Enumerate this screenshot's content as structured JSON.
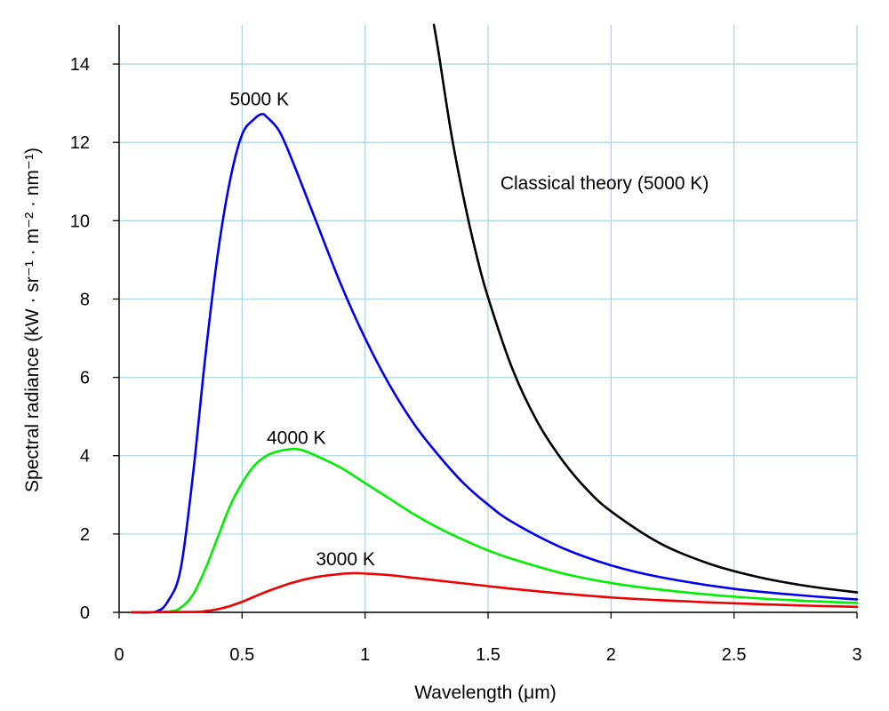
{
  "chart_data": {
    "type": "line",
    "title": "",
    "xlabel": "Wavelength (μm)",
    "ylabel": "Spectral radiance (kW · sr⁻¹ · m⁻² · nm⁻¹)",
    "xlim": [
      0,
      3
    ],
    "ylim": [
      0,
      15
    ],
    "x_ticks": [
      "0",
      "0.5",
      "1",
      "1.5",
      "2",
      "2.5",
      "3"
    ],
    "y_ticks": [
      "0",
      "2",
      "4",
      "6",
      "8",
      "10",
      "12",
      "14"
    ],
    "grid": true,
    "colors": {
      "grid": "#add8e6",
      "axis": "#000000",
      "series_5000": "#0000ee",
      "series_4000": "#00ee00",
      "series_3000": "#ee0000",
      "series_classical": "#000000"
    },
    "series": [
      {
        "name": "5000 K",
        "x": [
          0.05,
          0.15,
          0.2,
          0.25,
          0.3,
          0.35,
          0.4,
          0.45,
          0.5,
          0.55,
          0.58,
          0.6,
          0.65,
          0.7,
          0.8,
          0.9,
          1.0,
          1.1,
          1.2,
          1.3,
          1.4,
          1.5,
          1.6,
          1.8,
          2.0,
          2.2,
          2.5,
          2.8,
          3.0
        ],
        "y": [
          0,
          0.02,
          0.3,
          1.1,
          3.5,
          6.5,
          9.1,
          11.0,
          12.2,
          12.6,
          12.72,
          12.65,
          12.3,
          11.6,
          10.0,
          8.4,
          7.0,
          5.8,
          4.8,
          4.0,
          3.3,
          2.75,
          2.3,
          1.65,
          1.2,
          0.9,
          0.6,
          0.42,
          0.33
        ]
      },
      {
        "name": "4000 K",
        "x": [
          0.05,
          0.2,
          0.25,
          0.3,
          0.35,
          0.4,
          0.45,
          0.5,
          0.55,
          0.6,
          0.65,
          0.7,
          0.72,
          0.75,
          0.8,
          0.9,
          1.0,
          1.1,
          1.2,
          1.3,
          1.4,
          1.5,
          1.6,
          1.8,
          2.0,
          2.2,
          2.5,
          2.8,
          3.0
        ],
        "y": [
          0,
          0.02,
          0.12,
          0.45,
          1.1,
          1.9,
          2.7,
          3.3,
          3.75,
          4.0,
          4.12,
          4.17,
          4.17,
          4.13,
          4.0,
          3.7,
          3.3,
          2.9,
          2.5,
          2.15,
          1.85,
          1.58,
          1.36,
          1.0,
          0.75,
          0.58,
          0.4,
          0.29,
          0.24
        ]
      },
      {
        "name": "3000 K",
        "x": [
          0.05,
          0.3,
          0.35,
          0.4,
          0.45,
          0.5,
          0.55,
          0.6,
          0.7,
          0.8,
          0.9,
          0.96,
          1.0,
          1.1,
          1.2,
          1.3,
          1.4,
          1.5,
          1.6,
          1.8,
          2.0,
          2.2,
          2.5,
          2.8,
          3.0
        ],
        "y": [
          0,
          0.01,
          0.03,
          0.08,
          0.16,
          0.27,
          0.4,
          0.53,
          0.75,
          0.9,
          0.98,
          1.0,
          0.99,
          0.95,
          0.88,
          0.81,
          0.74,
          0.67,
          0.6,
          0.48,
          0.38,
          0.31,
          0.23,
          0.17,
          0.14
        ]
      },
      {
        "name": "Classical theory (5000 K)",
        "x": [
          1.28,
          1.3,
          1.35,
          1.4,
          1.45,
          1.5,
          1.6,
          1.7,
          1.8,
          1.9,
          2.0,
          2.2,
          2.4,
          2.6,
          2.8,
          3.0
        ],
        "y": [
          15.0,
          14.25,
          12.24,
          10.6,
          9.2,
          8.04,
          6.2,
          4.87,
          3.9,
          3.15,
          2.58,
          1.76,
          1.24,
          0.9,
          0.67,
          0.51
        ]
      }
    ],
    "annotations": [
      {
        "text": "5000 K",
        "x": 0.45,
        "y": 12.95
      },
      {
        "text": "4000 K",
        "x": 0.6,
        "y": 4.3
      },
      {
        "text": "3000 K",
        "x": 0.8,
        "y": 1.2
      },
      {
        "text": "Classical theory (5000 K)",
        "x": 1.55,
        "y": 10.8
      }
    ]
  }
}
